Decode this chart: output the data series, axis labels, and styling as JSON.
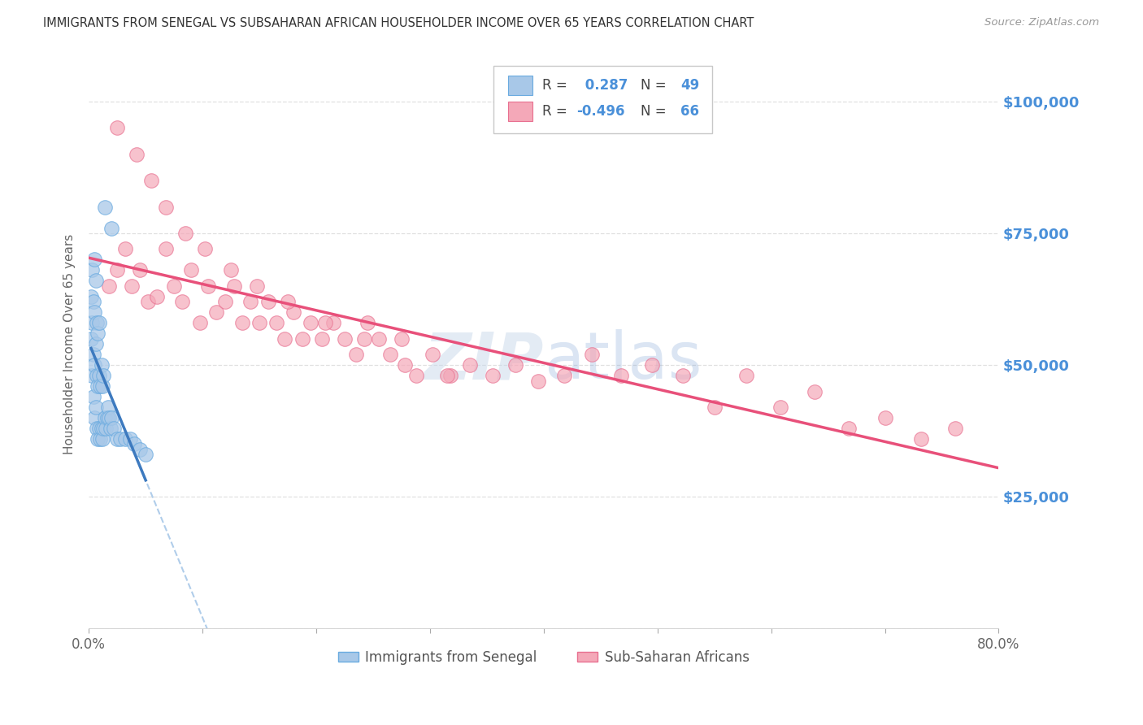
{
  "title": "IMMIGRANTS FROM SENEGAL VS SUBSAHARAN AFRICAN HOUSEHOLDER INCOME OVER 65 YEARS CORRELATION CHART",
  "source": "Source: ZipAtlas.com",
  "ylabel": "Householder Income Over 65 years",
  "xmin": 0.0,
  "xmax": 0.8,
  "ymin": 0,
  "ymax": 108000,
  "yticks_right": [
    25000,
    50000,
    75000,
    100000
  ],
  "ytick_labels_right": [
    "$25,000",
    "$50,000",
    "$75,000",
    "$100,000"
  ],
  "R_senegal": 0.287,
  "N_senegal": 49,
  "R_subsaharan": -0.496,
  "N_subsaharan": 66,
  "senegal_color": "#a8c8e8",
  "subsaharan_color": "#f4a8b8",
  "senegal_edge_color": "#6aabe0",
  "subsaharan_edge_color": "#e87090",
  "senegal_line_color": "#3d7abf",
  "senegal_dash_color": "#a8c8e8",
  "subsaharan_line_color": "#e8507a",
  "watermark_color": "#c8d8ea",
  "background_color": "#ffffff",
  "grid_color": "#e0e0e0",
  "title_color": "#333333",
  "right_tick_color": "#4a90d9",
  "legend_color": "#4a90d9",
  "senegal_x": [
    0.002,
    0.002,
    0.003,
    0.003,
    0.003,
    0.004,
    0.004,
    0.004,
    0.005,
    0.005,
    0.005,
    0.005,
    0.006,
    0.006,
    0.006,
    0.007,
    0.007,
    0.007,
    0.008,
    0.008,
    0.008,
    0.009,
    0.009,
    0.009,
    0.01,
    0.01,
    0.011,
    0.011,
    0.012,
    0.012,
    0.013,
    0.013,
    0.014,
    0.015,
    0.016,
    0.017,
    0.018,
    0.019,
    0.02,
    0.022,
    0.025,
    0.028,
    0.032,
    0.036,
    0.04,
    0.045,
    0.05,
    0.02,
    0.014
  ],
  "senegal_y": [
    55000,
    63000,
    48000,
    58000,
    68000,
    44000,
    52000,
    62000,
    40000,
    50000,
    60000,
    70000,
    42000,
    54000,
    66000,
    38000,
    48000,
    58000,
    36000,
    46000,
    56000,
    38000,
    48000,
    58000,
    36000,
    46000,
    38000,
    50000,
    36000,
    46000,
    38000,
    48000,
    40000,
    38000,
    40000,
    42000,
    40000,
    38000,
    40000,
    38000,
    36000,
    36000,
    36000,
    36000,
    35000,
    34000,
    33000,
    76000,
    80000
  ],
  "subsaharan_x": [
    0.018,
    0.025,
    0.032,
    0.038,
    0.045,
    0.052,
    0.06,
    0.068,
    0.075,
    0.082,
    0.09,
    0.098,
    0.105,
    0.112,
    0.12,
    0.128,
    0.135,
    0.142,
    0.15,
    0.158,
    0.165,
    0.172,
    0.18,
    0.188,
    0.195,
    0.205,
    0.215,
    0.225,
    0.235,
    0.245,
    0.255,
    0.265,
    0.275,
    0.288,
    0.302,
    0.318,
    0.335,
    0.355,
    0.375,
    0.395,
    0.418,
    0.442,
    0.468,
    0.495,
    0.522,
    0.55,
    0.578,
    0.608,
    0.638,
    0.668,
    0.7,
    0.732,
    0.762,
    0.025,
    0.042,
    0.055,
    0.068,
    0.085,
    0.102,
    0.125,
    0.148,
    0.175,
    0.208,
    0.242,
    0.278,
    0.315
  ],
  "subsaharan_y": [
    65000,
    68000,
    72000,
    65000,
    68000,
    62000,
    63000,
    72000,
    65000,
    62000,
    68000,
    58000,
    65000,
    60000,
    62000,
    65000,
    58000,
    62000,
    58000,
    62000,
    58000,
    55000,
    60000,
    55000,
    58000,
    55000,
    58000,
    55000,
    52000,
    58000,
    55000,
    52000,
    55000,
    48000,
    52000,
    48000,
    50000,
    48000,
    50000,
    47000,
    48000,
    52000,
    48000,
    50000,
    48000,
    42000,
    48000,
    42000,
    45000,
    38000,
    40000,
    36000,
    38000,
    95000,
    90000,
    85000,
    80000,
    75000,
    72000,
    68000,
    65000,
    62000,
    58000,
    55000,
    50000,
    48000
  ]
}
